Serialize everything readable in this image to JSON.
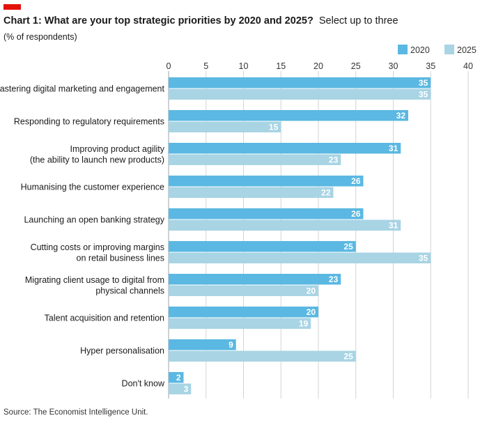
{
  "header": {
    "title": "Chart 1: What are your top strategic priorities by 2020 and 2025?",
    "subtitle": "Select up to three",
    "unit": "(% of respondents)"
  },
  "source": "Source: The Economist Intelligence Unit.",
  "colors": {
    "brand_red": "#e3120b",
    "series_2020": "#5bb8e2",
    "series_2025": "#a8d4e4"
  },
  "chart_data": {
    "type": "bar",
    "orientation": "horizontal",
    "categories": [
      [
        "Mastering digital marketing and engagement"
      ],
      [
        "Responding to regulatory requirements"
      ],
      [
        "Improving product agility",
        "(the ability to launch new products)"
      ],
      [
        "Humanising the customer experience"
      ],
      [
        "Launching an open banking strategy"
      ],
      [
        "Cutting costs or improving margins",
        "on retail business lines"
      ],
      [
        "Migrating client usage to digital from",
        "physical channels"
      ],
      [
        "Talent acquisition and retention"
      ],
      [
        "Hyper personalisation"
      ],
      [
        "Don't know"
      ]
    ],
    "series": [
      {
        "name": "2020",
        "color": "#5bb8e2",
        "values": [
          35,
          32,
          31,
          26,
          26,
          25,
          23,
          20,
          9,
          2
        ]
      },
      {
        "name": "2025",
        "color": "#a8d4e4",
        "values": [
          35,
          15,
          23,
          22,
          31,
          35,
          20,
          19,
          25,
          3
        ]
      }
    ],
    "xlim": [
      0,
      40
    ],
    "ticks": [
      0,
      5,
      10,
      15,
      20,
      25,
      30,
      35,
      40
    ],
    "grid": true,
    "legend_position": "top-right"
  }
}
